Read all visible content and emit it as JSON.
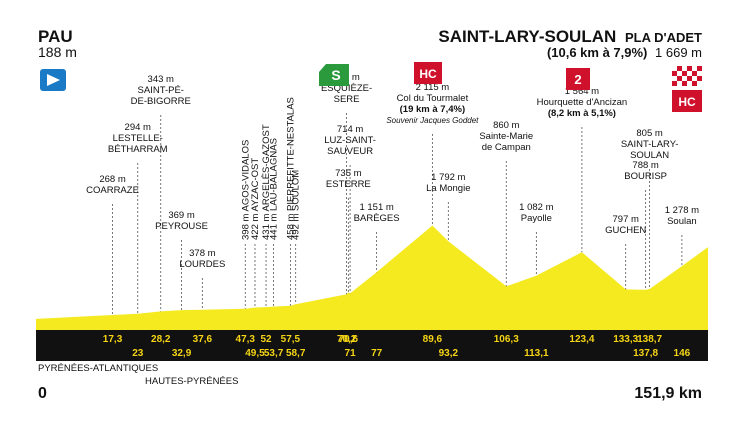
{
  "start": {
    "city": "PAU",
    "altitude": "188 m"
  },
  "finish": {
    "city": "SAINT-LARY-SOULAN",
    "suffix": "PLA D'ADET",
    "climb": "(10,6 km à 7,9%)",
    "altitude": "1 669 m"
  },
  "distance": {
    "start": "0",
    "end": "151,9 km"
  },
  "departments": [
    "PYRÉNÉES-ATLANTIQUES",
    "HAUTES-PYRÉNÉES"
  ],
  "colors": {
    "profile": "#f5ea1f",
    "band": "#111111",
    "band_text": "#f5d515",
    "sprint_green": "#2a9a3c",
    "climb_red": "#d0112b"
  },
  "badges": {
    "sprint": {
      "label": "S",
      "icon": "sprint-green-badge"
    },
    "hc1": {
      "label": "HC",
      "icon": "climb-hc-badge"
    },
    "cat2": {
      "label": "2",
      "icon": "climb-cat2-badge"
    },
    "finish": {
      "label": "HC",
      "icon": "finish-checkered-hc-badge"
    },
    "start": {
      "icon": "start-flag-icon"
    }
  },
  "points": [
    {
      "km": 17.3,
      "elev": 268,
      "lines": [
        "268 m",
        "COARRAZE"
      ]
    },
    {
      "km": 23,
      "elev": 294,
      "lines": [
        "294 m",
        "LESTELLE-",
        "BÉTHARRAM"
      ]
    },
    {
      "km": 28.2,
      "elev": 343,
      "lines": [
        "343 m",
        "SAINT-PÉ-",
        "DE-BIGORRE"
      ]
    },
    {
      "km": 32.9,
      "elev": 369,
      "lines": [
        "369 m",
        "PEYROUSE"
      ]
    },
    {
      "km": 37.6,
      "elev": 378,
      "lines": [
        "378 m",
        "LOURDES"
      ]
    },
    {
      "km": 47.3,
      "elev": 398,
      "lines": [
        "398 m AGOS-VIDALOS"
      ]
    },
    {
      "km": 49.5,
      "elev": 422,
      "lines": [
        "422 m AYZAC-OST"
      ]
    },
    {
      "km": 52,
      "elev": 431,
      "lines": [
        "431 m ARGELÈS-GAZOST"
      ]
    },
    {
      "km": 53.7,
      "elev": 441,
      "lines": [
        "441 m LAU-BALAGNAS"
      ]
    },
    {
      "km": 57.5,
      "elev": 458,
      "lines": [
        "458 m PIERREFITTE-NESTALAS"
      ]
    },
    {
      "km": 58.7,
      "elev": 492,
      "lines": [
        "492 m SOULOM"
      ]
    },
    {
      "km": 70.2,
      "elev": 697,
      "lines": [
        "697 m",
        "ESQUIÈZE-",
        "SERE"
      ]
    },
    {
      "km": 71,
      "elev": 714,
      "lines": [
        "714 m",
        "LUZ-SAINT-",
        "SAUVEUR"
      ]
    },
    {
      "km": 70.6,
      "elev": 735,
      "lines": [
        "735 m",
        "ESTERRE"
      ]
    },
    {
      "km": 77,
      "elev": 1151,
      "lines": [
        "1 151 m",
        "BARÈGES"
      ]
    },
    {
      "km": 89.6,
      "elev": 2115,
      "lines": [
        "2 115 m",
        "Col du Tourmalet",
        "(19 km à 7,4%)",
        "Souvenir Jacques Goddet"
      ]
    },
    {
      "km": 93.2,
      "elev": 1792,
      "lines": [
        "1 792 m",
        "La Mongie"
      ]
    },
    {
      "km": 106.3,
      "elev": 860,
      "lines": [
        "860 m",
        "Sainte-Marie",
        "de Campan"
      ]
    },
    {
      "km": 113.1,
      "elev": 1082,
      "lines": [
        "1 082 m",
        "Payolle"
      ]
    },
    {
      "km": 123.4,
      "elev": 1564,
      "lines": [
        "1 564 m",
        "Hourquette d'Ancizan",
        "(8,2 km à 5,1%)"
      ]
    },
    {
      "km": 133.3,
      "elev": 797,
      "lines": [
        "797 m",
        "GUCHEN"
      ]
    },
    {
      "km": 137.8,
      "elev": 788,
      "lines": [
        "788 m",
        "BOURISP"
      ]
    },
    {
      "km": 138.7,
      "elev": 805,
      "lines": [
        "805 m",
        "SAINT-LARY-",
        "SOULAN"
      ]
    },
    {
      "km": 146,
      "elev": 1278,
      "lines": [
        "1 278 m",
        "Soulan"
      ]
    }
  ],
  "km_top": [
    "17,3",
    "28,2",
    "37,6",
    "47,3",
    "52",
    "57,5",
    "70,2",
    "70,6",
    "89,6",
    "106,3",
    "123,4",
    "133,3",
    "138,7"
  ],
  "km_bottom": [
    "23",
    "32,9",
    "49,5",
    "53,7",
    "58,7",
    "71",
    "77",
    "93,2",
    "113,1",
    "137,8",
    "146"
  ]
}
